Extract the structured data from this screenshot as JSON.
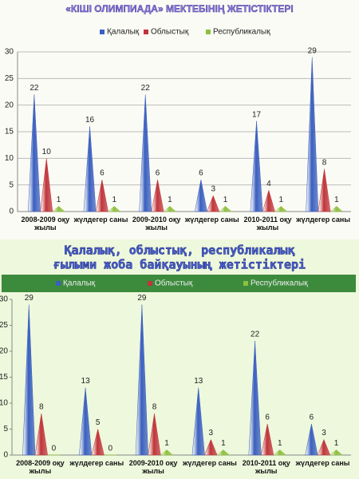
{
  "chart_data": [
    {
      "type": "cone-bar",
      "title": "«КІШІ ОЛИМПИАДА» МЕКТЕБІНІҢ ЖЕТІСТІКТЕРІ",
      "categories": [
        "2008-2009 оқу жылы",
        "жүлдегер саны",
        "2009-2010 оқу жылы",
        "жүлдегер саны",
        "2010-2011 оқу жылы",
        "жүлдегер саны"
      ],
      "series": [
        {
          "name": "Қалалық",
          "color": "#3a5fbf",
          "values": [
            22,
            16,
            22,
            6,
            17,
            29
          ]
        },
        {
          "name": "Облыстық",
          "color": "#c0343a",
          "values": [
            10,
            6,
            6,
            3,
            4,
            8
          ]
        },
        {
          "name": "Республикалық",
          "color": "#8fbf3f",
          "values": [
            1,
            1,
            1,
            1,
            1,
            1
          ]
        }
      ],
      "ylim": [
        0,
        30
      ],
      "yticks": [
        0,
        5,
        10,
        15,
        20,
        25,
        30
      ],
      "grid": true,
      "legend": "top"
    },
    {
      "type": "cone-bar",
      "title": [
        "Қалалық, облыстық, республикалық",
        "ғылыми жоба байқауының жетістіктері"
      ],
      "categories": [
        "2008-2009 оқу жылы",
        "жүлдегер саны",
        "2009-2010 оқу жылы",
        "жүлдегер саны",
        "2010-2011 оқу жылы",
        "жүлдегер саны"
      ],
      "series": [
        {
          "name": "Қалалық",
          "color": "#3a5fbf",
          "values": [
            29,
            13,
            29,
            13,
            22,
            6
          ]
        },
        {
          "name": "Облыстық",
          "color": "#c0343a",
          "values": [
            8,
            5,
            8,
            3,
            6,
            3
          ]
        },
        {
          "name": "Республикалық",
          "color": "#8fbf3f",
          "values": [
            0,
            0,
            1,
            1,
            1,
            1
          ]
        }
      ],
      "ylim": [
        0,
        30
      ],
      "yticks": [
        0,
        5,
        10,
        15,
        20,
        25,
        30
      ],
      "grid": false,
      "legend": "top"
    }
  ]
}
